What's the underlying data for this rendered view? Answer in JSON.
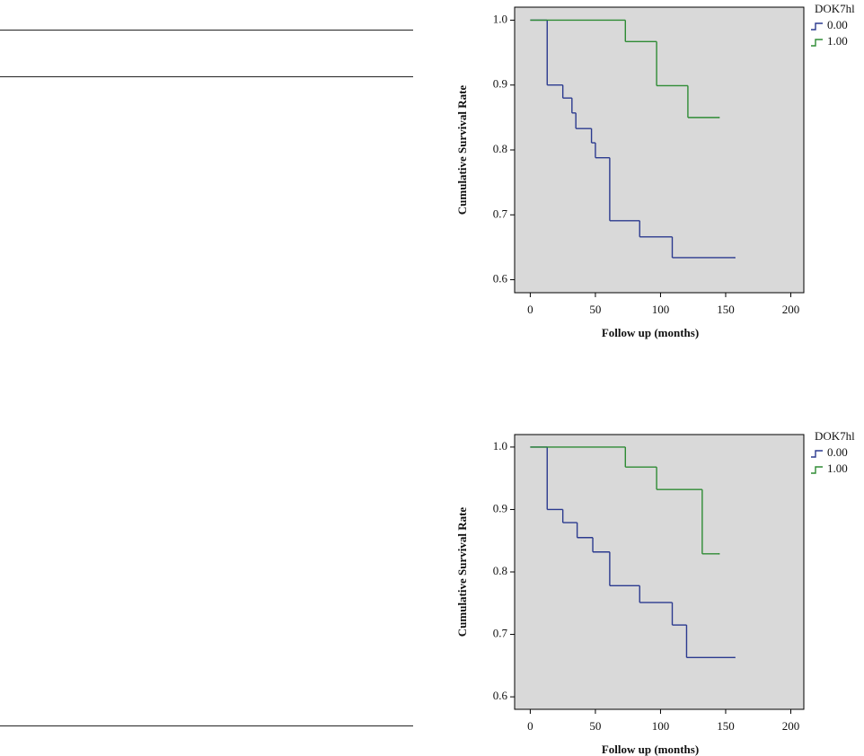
{
  "chart_data": [
    {
      "type": "step",
      "xlabel": "Follow up (months)",
      "ylabel": "Cumulative Survival Rate",
      "legend_title": "DOK7hl",
      "legend": "right",
      "xlim": [
        -12,
        210
      ],
      "ylim": [
        0.58,
        1.02
      ],
      "xticks": [
        0,
        50,
        100,
        150,
        200
      ],
      "yticks": [
        {
          "value": 0.6,
          "label": "0.6"
        },
        0.7,
        0.8,
        0.9,
        {
          "value": 1,
          "label": "1.0"
        }
      ],
      "series": [
        {
          "name": "0.00",
          "color": "#2b3a8f",
          "x": [
            0,
            13,
            25,
            32,
            35,
            47,
            50,
            61,
            84,
            109,
            157
          ],
          "values": [
            1,
            0.9,
            0.88,
            0.857,
            0.833,
            0.811,
            0.788,
            0.691,
            0.666,
            0.634,
            0.634
          ]
        },
        {
          "name": "1.00",
          "color": "#2e8b34",
          "x": [
            0,
            73,
            97,
            121,
            145
          ],
          "values": [
            1,
            0.967,
            0.899,
            0.85,
            0.85
          ]
        }
      ]
    },
    {
      "type": "step",
      "xlabel": "Follow up (months)",
      "ylabel": "Cumulative Survival Rate",
      "legend_title": "DOK7hl",
      "legend": "right",
      "xlim": [
        -12,
        210
      ],
      "ylim": [
        0.58,
        1.02
      ],
      "xticks": [
        0,
        50,
        100,
        150,
        200
      ],
      "yticks": [
        {
          "value": 0.6,
          "label": "0.6"
        },
        0.7,
        0.8,
        0.9,
        {
          "value": 1,
          "label": "1.0"
        }
      ],
      "series": [
        {
          "name": "0.00",
          "color": "#2b3a8f",
          "x": [
            0,
            13,
            25,
            36,
            48,
            61,
            84,
            109,
            120,
            157
          ],
          "values": [
            1,
            0.9,
            0.879,
            0.855,
            0.832,
            0.778,
            0.751,
            0.715,
            0.663,
            0.663
          ]
        },
        {
          "name": "1.00",
          "color": "#2e8b34",
          "x": [
            0,
            73,
            97,
            132,
            145
          ],
          "values": [
            1,
            0.968,
            0.932,
            0.829,
            0.829
          ]
        }
      ]
    }
  ]
}
